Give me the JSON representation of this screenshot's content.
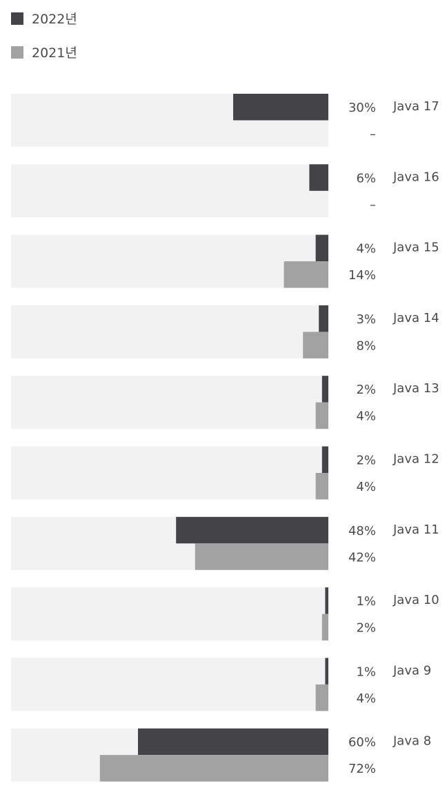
{
  "chart_data": {
    "type": "bar",
    "orientation": "horizontal",
    "bar_direction": "right-to-left",
    "legend_placement": "top-left",
    "grid": false,
    "xlim": [
      0,
      100
    ],
    "categories": [
      "Java 17",
      "Java 16",
      "Java 15",
      "Java 14",
      "Java 13",
      "Java 12",
      "Java 11",
      "Java 10",
      "Java 9",
      "Java 8"
    ],
    "series": [
      {
        "name": "2022년",
        "color": "#444447",
        "values": [
          30,
          6,
          4,
          3,
          2,
          2,
          48,
          1,
          1,
          60
        ],
        "labels": [
          "30%",
          "6%",
          "4%",
          "3%",
          "2%",
          "2%",
          "48%",
          "1%",
          "1%",
          "60%"
        ]
      },
      {
        "name": "2021년",
        "color": "#a2a2a2",
        "values": [
          null,
          null,
          14,
          8,
          4,
          4,
          42,
          2,
          4,
          72
        ],
        "labels": [
          "–",
          "–",
          "14%",
          "8%",
          "4%",
          "4%",
          "42%",
          "2%",
          "4%",
          "72%"
        ]
      }
    ],
    "track_color": "#f2f2f2"
  }
}
